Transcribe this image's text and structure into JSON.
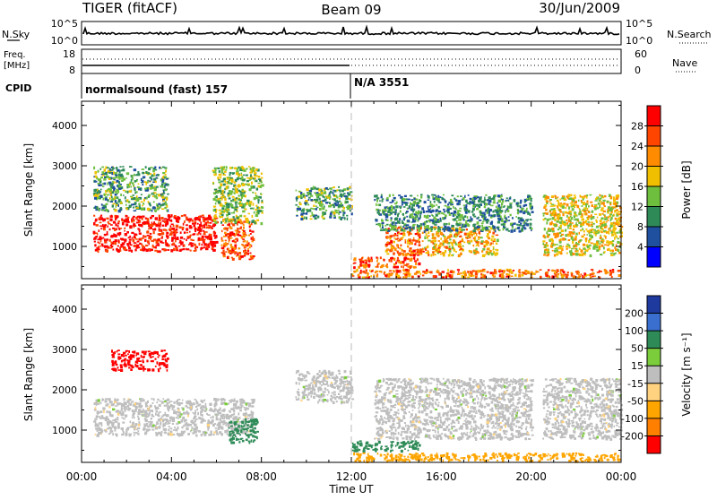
{
  "header": {
    "radar": "TIGER (fitACF)",
    "beam": "Beam 09",
    "date": "30/Jun/2009"
  },
  "left_labels": {
    "nsky": "N.Sky",
    "freq": "Freq.",
    "mhz": "[MHz]",
    "cpid": "CPID"
  },
  "right_labels": {
    "nsearch": "N.Search",
    "nave": "Nave"
  },
  "noise_panel": {
    "left_ticks": [
      "10^5",
      "10^0"
    ],
    "right_ticks": [
      "10^5",
      "10^0"
    ]
  },
  "freq_panel": {
    "left_ticks": [
      "18",
      "8"
    ],
    "right_ticks": [
      "60",
      "0"
    ]
  },
  "cpid_panel": {
    "segments": [
      {
        "label": "normalsound (fast) 157",
        "start_hour": 0
      },
      {
        "label": "N/A 3551",
        "start_hour": 12
      }
    ]
  },
  "chart_data": [
    {
      "type": "heatmap",
      "name": "power",
      "xlabel": "",
      "ylabel": "Slant Range [km]",
      "xlim": [
        0,
        24
      ],
      "ylim": [
        200,
        4600
      ],
      "y_ticks": [
        1000,
        2000,
        3000,
        4000
      ],
      "colorbar": {
        "label": "Power [dB]",
        "ticks": [
          "4",
          "8",
          "12",
          "16",
          "20",
          "24",
          "28"
        ],
        "colors": [
          "#0000ff",
          "#1f4f9f",
          "#2e8b57",
          "#6fbf3f",
          "#f0c000",
          "#ff8c00",
          "#ff4500",
          "#ff0000"
        ]
      },
      "regions": [
        {
          "x": [
            0.5,
            6.0
          ],
          "y": [
            900,
            1800
          ],
          "level": 28
        },
        {
          "x": [
            6.2,
            7.6
          ],
          "y": [
            700,
            1700
          ],
          "level": 24
        },
        {
          "x": [
            0.5,
            3.8
          ],
          "y": [
            1900,
            3000
          ],
          "level": 10
        },
        {
          "x": [
            5.8,
            8.0
          ],
          "y": [
            1600,
            3000
          ],
          "level": 12
        },
        {
          "x": [
            9.5,
            12.0
          ],
          "y": [
            1700,
            2500
          ],
          "level": 10
        },
        {
          "x": [
            13.5,
            15.2
          ],
          "y": [
            800,
            1500
          ],
          "level": 22
        },
        {
          "x": [
            15.2,
            18.5
          ],
          "y": [
            800,
            1500
          ],
          "level": 18
        },
        {
          "x": [
            13.0,
            20.0
          ],
          "y": [
            1400,
            2300
          ],
          "level": 8
        },
        {
          "x": [
            12.0,
            15.0
          ],
          "y": [
            500,
            750
          ],
          "level": 24
        },
        {
          "x": [
            12.0,
            24.0
          ],
          "y": [
            250,
            450
          ],
          "level": 22
        },
        {
          "x": [
            20.5,
            24.0
          ],
          "y": [
            800,
            2300
          ],
          "level": 16
        }
      ]
    },
    {
      "type": "heatmap",
      "name": "velocity",
      "xlabel": "Time UT",
      "ylabel": "Slant Range [km]",
      "xlim": [
        0,
        24
      ],
      "ylim": [
        200,
        4600
      ],
      "x_ticks": [
        "00:00",
        "04:00",
        "08:00",
        "12:00",
        "16:00",
        "20:00",
        "00:00"
      ],
      "y_ticks": [
        1000,
        2000,
        3000,
        4000
      ],
      "colorbar": {
        "label": "Velocity [m s⁻¹]",
        "ticks": [
          "200",
          "100",
          "50",
          "15",
          "-15",
          "-50",
          "-100",
          "-200"
        ],
        "colors": [
          "#1e3a9f",
          "#3a6fd0",
          "#2e8b57",
          "#7ccd3c",
          "#bebebe",
          "#ffd27f",
          "#ffa500",
          "#ff7f00",
          "#ff0000"
        ]
      },
      "regions": [
        {
          "x": [
            0.5,
            7.6
          ],
          "y": [
            900,
            1800
          ],
          "level": 0
        },
        {
          "x": [
            6.5,
            7.8
          ],
          "y": [
            700,
            1300
          ],
          "level": 60
        },
        {
          "x": [
            1.3,
            3.8
          ],
          "y": [
            2500,
            3000
          ],
          "level": -200
        },
        {
          "x": [
            9.5,
            12.0
          ],
          "y": [
            1700,
            2500
          ],
          "level": 0
        },
        {
          "x": [
            13.0,
            20.0
          ],
          "y": [
            800,
            2300
          ],
          "level": 0
        },
        {
          "x": [
            12.0,
            15.0
          ],
          "y": [
            500,
            750
          ],
          "level": 60
        },
        {
          "x": [
            12.0,
            24.0
          ],
          "y": [
            250,
            450
          ],
          "level": -60
        },
        {
          "x": [
            20.5,
            24.0
          ],
          "y": [
            800,
            2300
          ],
          "level": 0
        }
      ]
    }
  ]
}
